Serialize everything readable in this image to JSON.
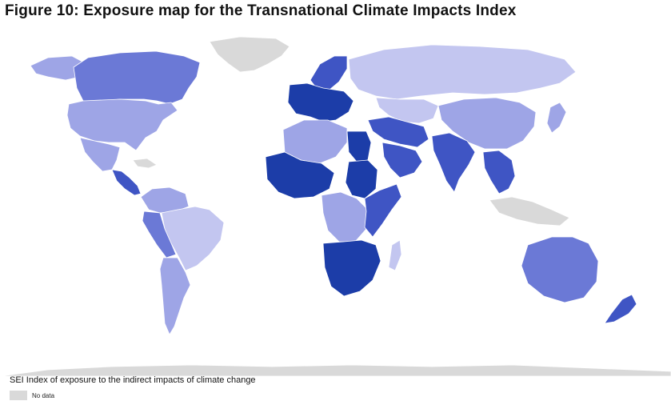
{
  "title": "Figure 10: Exposure map for the Transnational Climate Impacts Index",
  "legend": {
    "title": "SEI Index of exposure to the indirect impacts of climate change",
    "items": [
      {
        "label": "No data",
        "color": "#d9d9d9"
      }
    ]
  },
  "palette": {
    "very_low": "#c3c6f0",
    "low": "#9ea5e6",
    "medium": "#6b79d6",
    "high": "#3f55c4",
    "very_high": "#1c3da8",
    "no_data": "#d9d9d9",
    "background": "#ffffff"
  },
  "regions": [
    {
      "name": "Greenland",
      "class": "no_data"
    },
    {
      "name": "Canada",
      "class": "medium"
    },
    {
      "name": "Alaska",
      "class": "low"
    },
    {
      "name": "United States",
      "class": "low"
    },
    {
      "name": "Mexico",
      "class": "low"
    },
    {
      "name": "Central America",
      "class": "high"
    },
    {
      "name": "Colombia/Venezuela",
      "class": "low"
    },
    {
      "name": "Brazil",
      "class": "very_low"
    },
    {
      "name": "Peru/Bolivia",
      "class": "medium"
    },
    {
      "name": "Argentina/Chile",
      "class": "low"
    },
    {
      "name": "Western Europe",
      "class": "very_high"
    },
    {
      "name": "Scandinavia",
      "class": "high"
    },
    {
      "name": "Russia",
      "class": "very_low"
    },
    {
      "name": "Kazakhstan/Central Asia",
      "class": "very_low"
    },
    {
      "name": "China",
      "class": "low"
    },
    {
      "name": "Middle East",
      "class": "high"
    },
    {
      "name": "Arabian Peninsula",
      "class": "high"
    },
    {
      "name": "India",
      "class": "high"
    },
    {
      "name": "Southeast Asia",
      "class": "high"
    },
    {
      "name": "Egypt",
      "class": "very_high"
    },
    {
      "name": "Sudan",
      "class": "very_high"
    },
    {
      "name": "North Africa",
      "class": "low"
    },
    {
      "name": "West Africa",
      "class": "very_high"
    },
    {
      "name": "Central Africa",
      "class": "low"
    },
    {
      "name": "East Africa",
      "class": "high"
    },
    {
      "name": "Southern Africa",
      "class": "very_high"
    },
    {
      "name": "Madagascar",
      "class": "very_low"
    },
    {
      "name": "Australia",
      "class": "medium"
    },
    {
      "name": "New Zealand",
      "class": "high"
    },
    {
      "name": "Japan",
      "class": "low"
    },
    {
      "name": "Antarctica",
      "class": "no_data"
    }
  ]
}
